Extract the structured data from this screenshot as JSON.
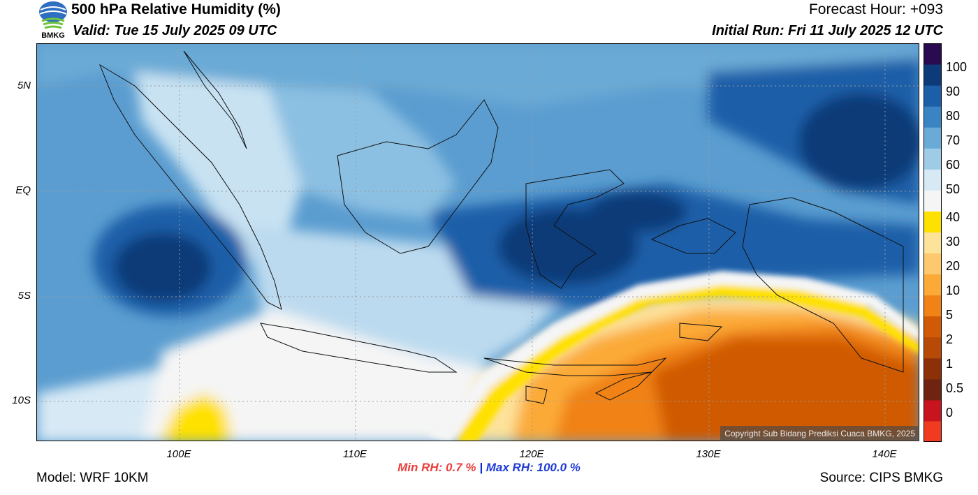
{
  "header": {
    "title": "500 hPa Relative Humidity (%)",
    "valid": "Valid: Tue 15 July 2025 09 UTC",
    "forecast_hour": "Forecast Hour: +093",
    "initial_run": "Initial Run: Fri 11 July 2025 12 UTC",
    "logo_text": "BMKG"
  },
  "axes": {
    "lat_labels": [
      "5N",
      "EQ",
      "5S",
      "10S"
    ],
    "lon_labels": [
      "100E",
      "110E",
      "120E",
      "130E",
      "140E"
    ]
  },
  "stats": {
    "min_label": "Min RH:",
    "min_value": "0.7 %",
    "separator": "|",
    "max_label": "Max RH: 100.0 %"
  },
  "footer": {
    "model": "Model: WRF 10KM",
    "source": "Source: CIPS BMKG",
    "copyright": "Copyright Sub Bidang Prediksi Cuaca BMKG, 2025"
  },
  "legend": {
    "labels": [
      "100",
      "90",
      "80",
      "70",
      "60",
      "50",
      "40",
      "30",
      "20",
      "10",
      "5",
      "2",
      "1",
      "0.5",
      "0"
    ],
    "colors": [
      "#f03b20",
      "#c8141e",
      "#6e2410",
      "#8c3008",
      "#b84a08",
      "#d05a06",
      "#f08218",
      "#fbaa38",
      "#fdc86e",
      "#fde29a",
      "#ffe100",
      "#f5f5f5",
      "#d7e9f5",
      "#9ecbe6",
      "#6aaad6",
      "#3a84c4",
      "#1c5ea8",
      "#0d3a78",
      "#2a0a50"
    ]
  }
}
